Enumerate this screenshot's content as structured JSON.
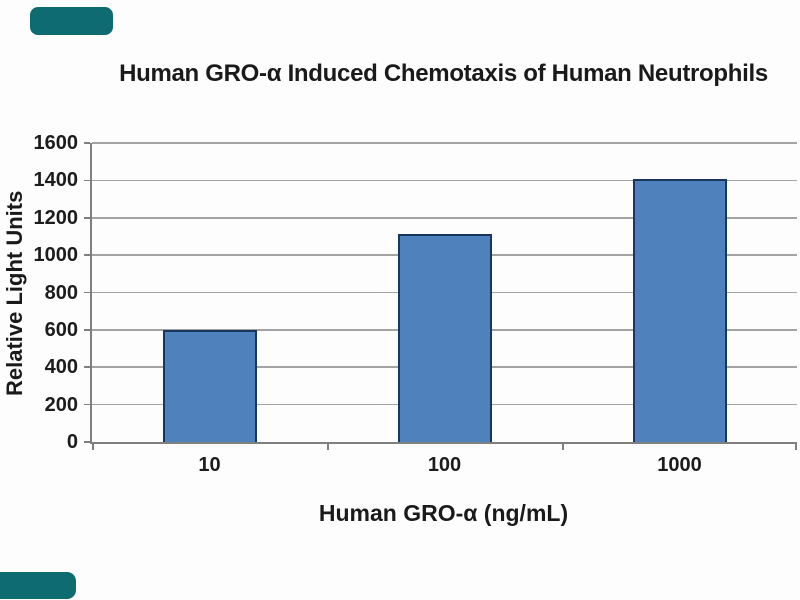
{
  "page": {
    "background": "#fdfdfd",
    "corner_mark_color": "#0E6B71"
  },
  "chart_data": {
    "type": "bar",
    "title": "Human GRO-α Induced Chemotaxis of Human Neutrophils",
    "xlabel": "Human GRO-α (ng/mL)",
    "ylabel": "Relative Light Units",
    "categories": [
      "10",
      "100",
      "1000"
    ],
    "values": [
      600,
      1115,
      1410
    ],
    "ylim": [
      0,
      1600
    ],
    "yticks": [
      0,
      200,
      400,
      600,
      800,
      1000,
      1200,
      1400,
      1600
    ],
    "grid": true,
    "legend_position": "none",
    "bar_width_fraction": 0.4,
    "colors": {
      "bar_fill": "#4F81BD",
      "bar_border": "#17375E",
      "gridline": "#A3A3A3",
      "axis": "#7F7F7F",
      "text": "#1A1A1A"
    }
  }
}
